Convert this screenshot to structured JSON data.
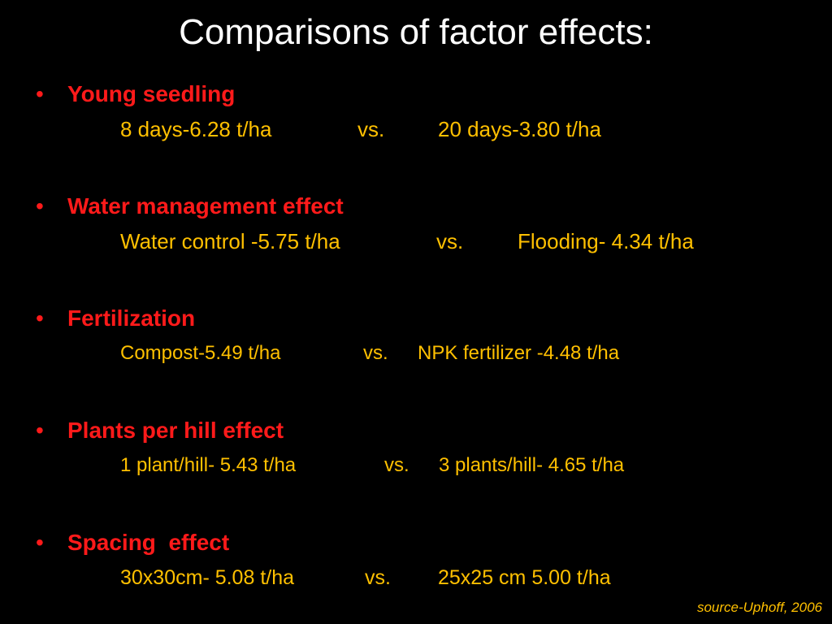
{
  "slide": {
    "title": "Comparisons of factor effects:",
    "bullet_glyph": "•",
    "vs_label": "vs.",
    "source": "source-Uphoff, 2006",
    "colors": {
      "background": "#000000",
      "title": "#ffffff",
      "heading": "#ff1a1a",
      "comparison": "#ffc000"
    },
    "items": [
      {
        "heading": "Young seedling",
        "left": "8 days-6.28 t/ha",
        "right": "20 days-3.80 t/ha"
      },
      {
        "heading": "Water management effect",
        "left": "Water control -5.75 t/ha",
        "right": "Flooding- 4.34 t/ha"
      },
      {
        "heading": "Fertilization",
        "left": "Compost-5.49 t/ha",
        "right": "NPK fertilizer -4.48 t/ha"
      },
      {
        "heading": "Plants per hill effect",
        "left": "1 plant/hill- 5.43 t/ha",
        "right": "3 plants/hill- 4.65 t/ha"
      },
      {
        "heading": "Spacing  effect",
        "left": "30x30cm- 5.08 t/ha",
        "right": "25x25 cm 5.00 t/ha"
      }
    ]
  }
}
